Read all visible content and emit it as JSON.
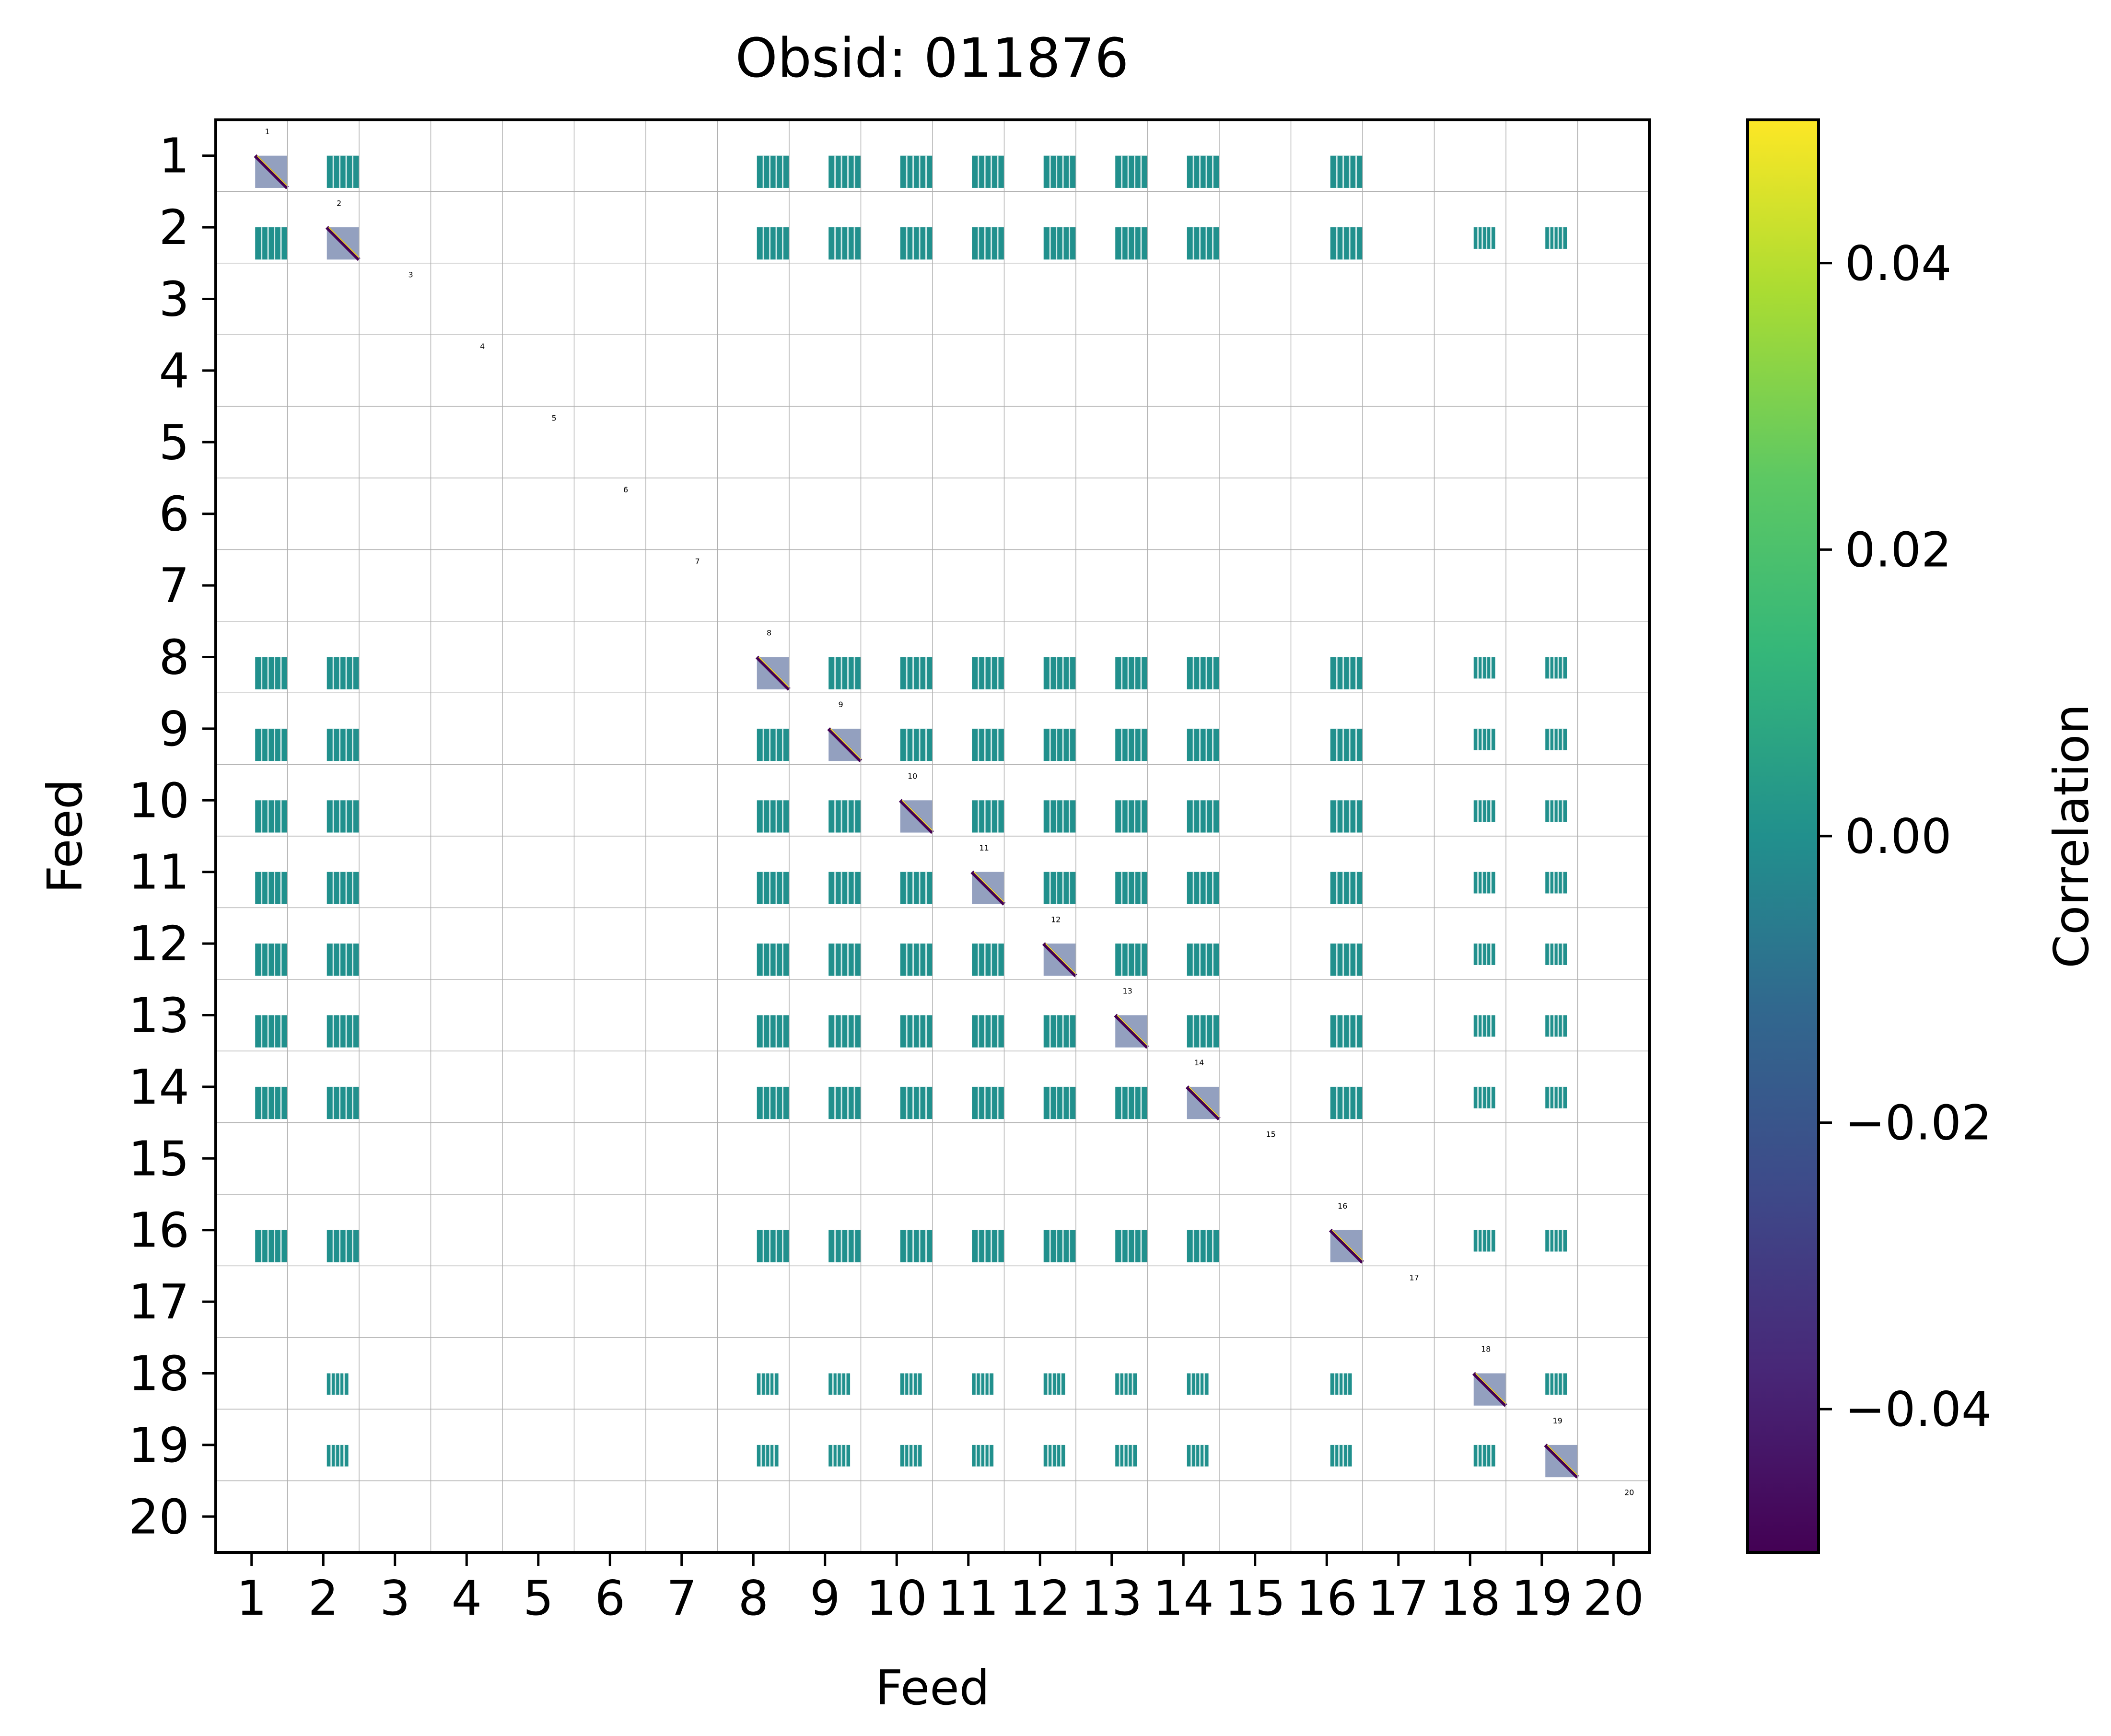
{
  "chart_data": {
    "type": "heatmap",
    "title": "Obsid: 011876",
    "xlabel": "Feed",
    "ylabel": "Feed",
    "x_ticks": [
      "1",
      "2",
      "3",
      "4",
      "5",
      "6",
      "7",
      "8",
      "9",
      "10",
      "11",
      "12",
      "13",
      "14",
      "15",
      "16",
      "17",
      "18",
      "19",
      "20"
    ],
    "y_ticks": [
      "1",
      "2",
      "3",
      "4",
      "5",
      "6",
      "7",
      "8",
      "9",
      "10",
      "11",
      "12",
      "13",
      "14",
      "15",
      "16",
      "17",
      "18",
      "19",
      "20"
    ],
    "diagonal_labels": [
      "1",
      "2",
      "3",
      "4",
      "5",
      "6",
      "7",
      "8",
      "9",
      "10",
      "11",
      "12",
      "13",
      "14",
      "15",
      "16",
      "17",
      "18",
      "19",
      "20"
    ],
    "colorbar": {
      "label": "Correlation",
      "range": [
        -0.05,
        0.05
      ],
      "colormap": "viridis",
      "tick_values": [
        -0.04,
        -0.02,
        0.0,
        0.02,
        0.04
      ],
      "tick_labels": [
        "−0.04",
        "−0.02",
        "0.00",
        "0.02",
        "0.04"
      ]
    },
    "active_feeds": [
      1,
      2,
      8,
      9,
      10,
      11,
      12,
      13,
      14,
      16,
      18,
      19
    ],
    "inactive_feeds": [
      3,
      4,
      5,
      6,
      7,
      15,
      17,
      20
    ],
    "partial_coverage_feeds": [
      18,
      19
    ],
    "typical_offdiagonal_correlation": 0.0,
    "colors": {
      "near_zero": "#21908d",
      "low": "#440154",
      "mid_low": "#3b528b",
      "mid_high": "#5dc863",
      "high": "#fde725",
      "grid": "#b0b0b0"
    }
  }
}
